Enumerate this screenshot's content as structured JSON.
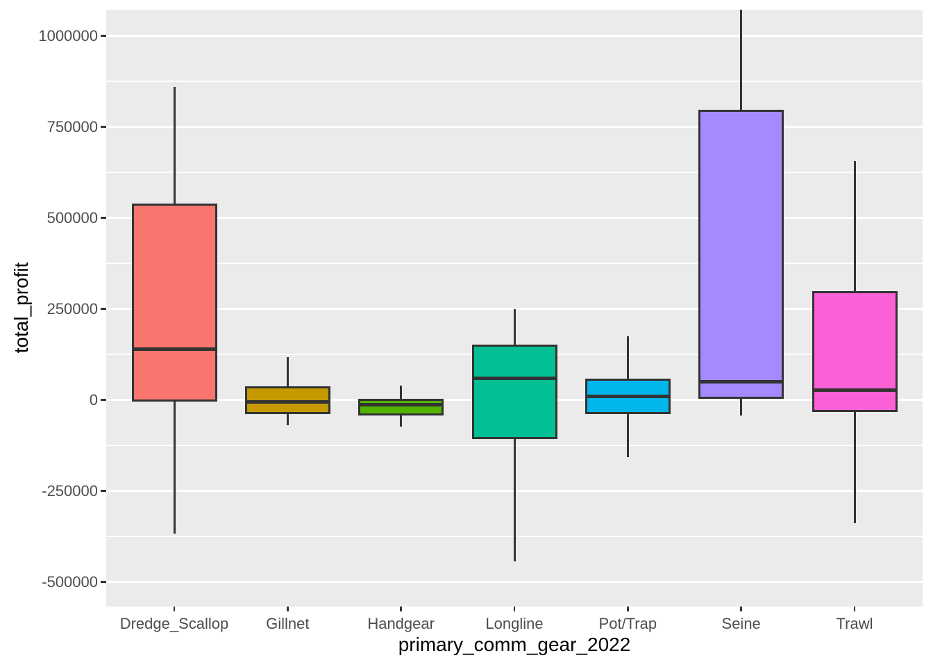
{
  "chart_data": {
    "type": "boxplot",
    "title": "",
    "xlabel": "primary_comm_gear_2022",
    "ylabel": "total_profit",
    "categories": [
      "Dredge_Scallop",
      "Gillnet",
      "Handgear",
      "Longline",
      "Pot/Trap",
      "Seine",
      "Trawl"
    ],
    "series": [
      {
        "name": "Dredge_Scallop",
        "min": -367000,
        "q1": -2000,
        "median": 139000,
        "q3": 536000,
        "max": 860000,
        "color": "#F8766D"
      },
      {
        "name": "Gillnet",
        "min": -70000,
        "q1": -37000,
        "median": -6000,
        "q3": 35000,
        "max": 117000,
        "color": "#C49A00"
      },
      {
        "name": "Handgear",
        "min": -74000,
        "q1": -40000,
        "median": -14000,
        "q3": 0,
        "max": 40000,
        "color": "#53B400"
      },
      {
        "name": "Longline",
        "min": -444000,
        "q1": -104000,
        "median": 59000,
        "q3": 149000,
        "max": 249000,
        "color": "#00C094"
      },
      {
        "name": "Pot/Trap",
        "min": -158000,
        "q1": -36000,
        "median": 9000,
        "q3": 55000,
        "max": 174000,
        "color": "#00B6EB"
      },
      {
        "name": "Seine",
        "min": -42000,
        "q1": 5000,
        "median": 49000,
        "q3": 794000,
        "max": 1075000,
        "color": "#A58AFF"
      },
      {
        "name": "Trawl",
        "min": -338000,
        "q1": -30000,
        "median": 26000,
        "q3": 295000,
        "max": 656000,
        "color": "#FB61D7"
      }
    ],
    "y_axis": {
      "ticks": [
        {
          "value": -500000,
          "label": "-500000"
        },
        {
          "value": -250000,
          "label": "-250000"
        },
        {
          "value": 0,
          "label": "0"
        },
        {
          "value": 250000,
          "label": "250000"
        },
        {
          "value": 500000,
          "label": "500000"
        },
        {
          "value": 750000,
          "label": "750000"
        },
        {
          "value": 1000000,
          "label": "1000000"
        }
      ],
      "minor_ticks": [
        -375000,
        -125000,
        125000,
        375000,
        625000,
        875000
      ]
    },
    "ylim": [
      -567700,
      1071600
    ],
    "grid": true,
    "legend": false,
    "panel_bg": "#EBEBEB",
    "grid_color": "#FFFFFF",
    "outline_color": "#333333",
    "tick_label_color": "#4D4D4D",
    "axis_title_color": "#000000"
  }
}
